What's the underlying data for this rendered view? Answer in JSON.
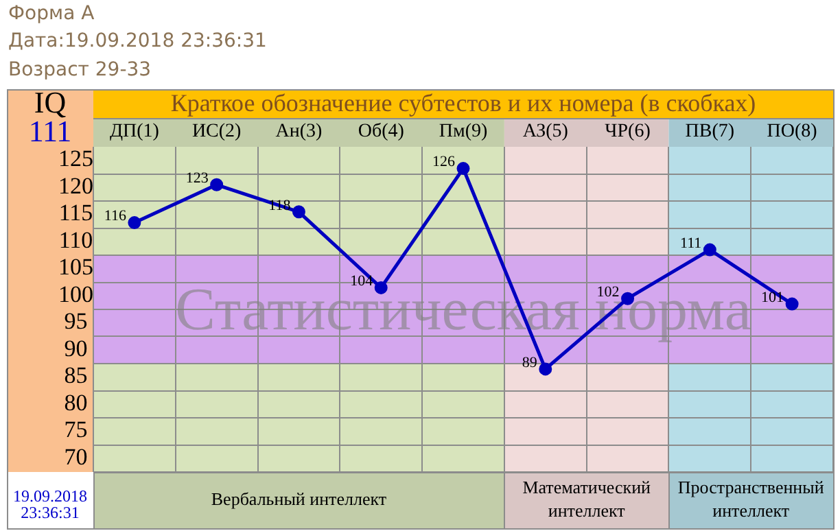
{
  "chart_data": {
    "type": "line",
    "title": "Форма А",
    "subtitle": "Дата:19.09.2018 23:36:31",
    "xlabel": "Краткое обозначение субтестов и их номера (в скобках)",
    "ylabel": "IQ",
    "annotations": [
      "Возраст 29-33",
      "111",
      "19.09.2018 23:36:31"
    ],
    "categories": [
      "ДП(1)",
      "ИС(2)",
      "Ан(3)",
      "Об(4)",
      "Пм(9)",
      "АЗ(5)",
      "ЧР(6)",
      "ПВ(7)",
      "ПО(8)"
    ],
    "series": [
      {
        "color": "#0000c0",
        "values": [
          116,
          123,
          118,
          104,
          126,
          89,
          102,
          111,
          101
        ]
      }
    ],
    "ylim": [
      70,
      130
    ],
    "yticks": [
      70,
      75,
      80,
      85,
      90,
      95,
      100,
      105,
      110,
      115,
      120,
      125
    ],
    "grid": true,
    "marker": "circle",
    "data_labels": true,
    "bands": [
      {
        "axis": "x",
        "from": "ДП(1)",
        "to": "Пм(9)",
        "label": "Вербальный интеллект",
        "color": "#d8e4bc"
      },
      {
        "axis": "x",
        "from": "АЗ(5)",
        "to": "ЧР(6)",
        "label": "Математический интеллект",
        "color": "#f2dcdb"
      },
      {
        "axis": "x",
        "from": "ПВ(7)",
        "to": "ПО(8)",
        "label": "Пространственный интеллект",
        "color": "#b7dee8"
      },
      {
        "axis": "y",
        "from": 90,
        "to": 110,
        "label": "Статистическая норма",
        "color": "#d4a7ee"
      }
    ]
  }
}
